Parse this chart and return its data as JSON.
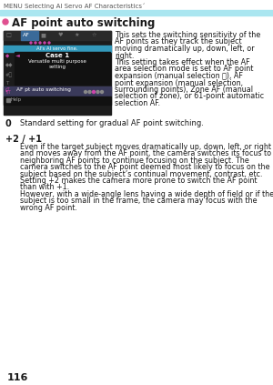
{
  "page_header": "MENU Selecting AI Servo AF Characteristics´",
  "cyan_bar_color": "#aae6f0",
  "section_dot_color": "#e05090",
  "section_title": "AF point auto switching",
  "right_text_lines": [
    "This sets the switching sensitivity of the",
    "AF points as they track the subject",
    "moving dramatically up, down, left, or",
    "right.",
    "This setting takes effect when the AF",
    "area selection mode is set to AF point",
    "expansion (manual selection ⭢), AF",
    "point expansion (manual selection,",
    "surrounding points), Zone AF (manual",
    "selection of zone), or 61-point automatic",
    "selection AF."
  ],
  "label_0": "0",
  "text_0": "Standard setting for gradual AF point switching.",
  "label_plus": "+2 / +1",
  "plus_lines": [
    "Even if the target subject moves dramatically up, down, left, or right",
    "and moves away from the AF point, the camera switches its focus to",
    "neighboring AF points to continue focusing on the subject. The",
    "camera switches to the AF point deemed most likely to focus on the",
    "subject based on the subject’s continual movement, contrast, etc.",
    "Setting +2 makes the camera more prone to switch the AF point",
    "than with +1.",
    "However, with a wide-angle lens having a wide depth of field or if the",
    "subject is too small in the frame, the camera may focus with the",
    "wrong AF point."
  ],
  "page_number": "116",
  "bg_color": "#ffffff",
  "text_color": "#1a1a1a",
  "menu_bg": "#1c1c1c",
  "menu_cyan_bar": "#3399bb",
  "menu_pink": "#cc44aa",
  "menu_gray": "#888888",
  "menu_highlight_bar": "#3a3a5a"
}
